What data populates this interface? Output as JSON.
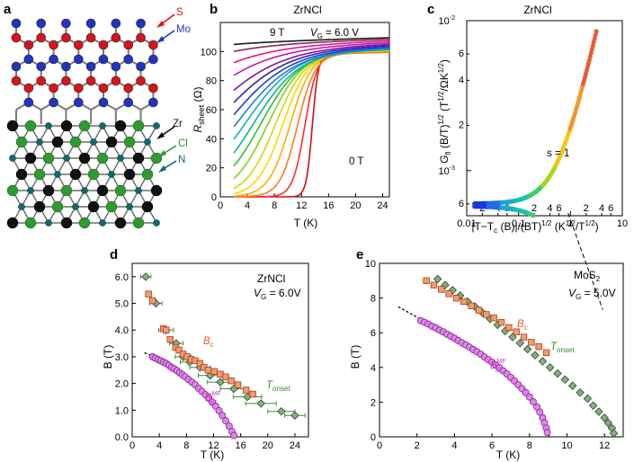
{
  "figure": {
    "panel_labels": [
      "a",
      "b",
      "c",
      "d",
      "e"
    ]
  },
  "panel_a": {
    "mos2_labels": [
      "S",
      "Mo"
    ],
    "zrncl_labels": [
      "Zr",
      "Cl",
      "N"
    ],
    "colors": {
      "S": "#d8141c",
      "Mo": "#2333c4",
      "Zr": "#111111",
      "Cl": "#2f9a2f",
      "N": "#0f6b6b"
    }
  },
  "chart_data": [
    {
      "id": "b",
      "type": "line",
      "title": "ZrNCl",
      "xlabel": "T (K)",
      "ylabel_main": "R",
      "ylabel_sub": "sheet",
      "ylabel_unit": " (Ω)",
      "xlim": [
        0,
        25
      ],
      "ylim": [
        0,
        120
      ],
      "xticks": [
        "0",
        "4",
        "8",
        "12",
        "16",
        "20",
        "24"
      ],
      "yticks": [
        "0",
        "20",
        "40",
        "60",
        "80",
        "100"
      ],
      "annotations": {
        "high_field": "9 T",
        "gate": "V",
        "gate_sub": "G",
        "gate_val": " = 6.0 V",
        "zero_field": "0 T"
      },
      "series": [
        {
          "name": "0 T",
          "tc": 13.6,
          "w": 0.45,
          "rn": 99,
          "color": "#d01010"
        },
        {
          "name": "c1",
          "tc": 12.5,
          "w": 0.9,
          "rn": 99,
          "color": "#ff2a2a"
        },
        {
          "name": "c2",
          "tc": 11.4,
          "w": 1.3,
          "rn": 99,
          "color": "#ff7a1a"
        },
        {
          "name": "c3",
          "tc": 10.3,
          "w": 1.6,
          "rn": 100,
          "color": "#ffaa00"
        },
        {
          "name": "c4",
          "tc": 9.2,
          "w": 1.9,
          "rn": 100,
          "color": "#ffd400"
        },
        {
          "name": "c5",
          "tc": 8.1,
          "w": 2.2,
          "rn": 100,
          "color": "#c8dc00"
        },
        {
          "name": "c6",
          "tc": 7.0,
          "w": 2.6,
          "rn": 101,
          "color": "#7ed21a"
        },
        {
          "name": "c7",
          "tc": 5.9,
          "w": 3.0,
          "rn": 101,
          "color": "#2cc23a"
        },
        {
          "name": "c8",
          "tc": 4.8,
          "w": 3.4,
          "rn": 101,
          "color": "#11b48a"
        },
        {
          "name": "c9",
          "tc": 3.6,
          "w": 3.8,
          "rn": 102,
          "color": "#16a8d0"
        },
        {
          "name": "c10",
          "tc": 2.3,
          "w": 4.2,
          "rn": 102,
          "color": "#1f7de0"
        },
        {
          "name": "c11",
          "tc": 0.9,
          "w": 4.6,
          "rn": 103,
          "color": "#2040c8"
        },
        {
          "name": "c12",
          "tc": -0.8,
          "w": 5.0,
          "rn": 104,
          "color": "#3a1faa"
        },
        {
          "name": "c13",
          "tc": -3.0,
          "w": 5.5,
          "rn": 105,
          "color": "#7a1aa8"
        },
        {
          "name": "c14",
          "tc": -6.5,
          "w": 6.0,
          "rn": 106,
          "color": "#c018a8"
        },
        {
          "name": "c15",
          "tc": -11.0,
          "w": 6.5,
          "rn": 107,
          "color": "#e0188a"
        },
        {
          "name": "c16",
          "tc": -18.0,
          "w": 7.0,
          "rn": 108,
          "color": "#8a2a50"
        },
        {
          "name": "9 T",
          "tc": -30.0,
          "w": 8.0,
          "rn": 109,
          "color": "#1a1a1a"
        }
      ]
    },
    {
      "id": "c",
      "type": "scatter",
      "title": "ZrNCl",
      "xscale": "log",
      "yscale": "log",
      "xlim": [
        0.01,
        10
      ],
      "ylim": [
        0.0005,
        0.01
      ],
      "xticks": [
        "0.01",
        "0.1",
        "1",
        "10"
      ],
      "yticks": [
        "10",
        "10",
        "10"
      ],
      "ytick_exps": [
        "-4",
        "-3",
        "-2"
      ],
      "minor_x_labels": [
        "2",
        "4",
        "6",
        "2",
        "4",
        "6",
        "2",
        "4",
        "6",
        "2",
        "4",
        "6"
      ],
      "minor_y_labels": [
        "6",
        "2",
        "4",
        "6",
        "2",
        "4",
        "6",
        "2",
        "4"
      ],
      "xlabel": "|T−T",
      "xlabel_sub": "c",
      "xlabel_rest": " (B)|/(BT)",
      "xlabel_sup": "1/2",
      "xlabel_unit": " (K",
      "xlabel_unit_sup": "1/2",
      "xlabel_unit_mid": "/T",
      "xlabel_unit_sup2": "1/2",
      "xlabel_unit_end": ")",
      "ylabel": "G",
      "ylabel_sub": "fl",
      "ylabel_rest": " (B/T)",
      "ylabel_sup": "1/2",
      "ylabel_unit": " (T",
      "ylabel_unit_sup": "1/2",
      "ylabel_unit_end": "/ΩK",
      "ylabel_unit_sup2": "1/2",
      "ylabel_unit_close": ")",
      "annotation": "s = 1",
      "upper_branch_level": 0.0006,
      "lower_branch_level": 0.00058
    },
    {
      "id": "d",
      "type": "scatter",
      "title": "ZrNCl",
      "gate": "V",
      "gate_sub": "G",
      "gate_val": " = 6.0V",
      "xlabel": "T (K)",
      "ylabel": "B (T)",
      "xlim": [
        0,
        26
      ],
      "ylim": [
        0,
        6.5
      ],
      "xticks": [
        "0",
        "4",
        "8",
        "12",
        "16",
        "20",
        "24"
      ],
      "yticks": [
        "0.0",
        "1.0",
        "2.0",
        "3.0",
        "4.0",
        "5.0",
        "6.0"
      ],
      "label_bc": "B",
      "label_bc_sub": "c",
      "label_tonset": "T",
      "label_tonset_sub": "onset",
      "label_bc2": "B",
      "label_bc2_sup": "MF",
      "label_bc2_sub": "c2",
      "bc_points": [
        [
          2.4,
          5.35
        ],
        [
          3.0,
          5.1
        ],
        [
          4.6,
          4.05
        ],
        [
          5.0,
          4.0
        ],
        [
          5.6,
          3.65
        ],
        [
          6.4,
          3.35
        ],
        [
          6.9,
          3.25
        ],
        [
          7.5,
          3.1
        ],
        [
          8.1,
          3.0
        ],
        [
          8.7,
          2.9
        ],
        [
          9.3,
          2.85
        ],
        [
          10.0,
          2.75
        ],
        [
          10.6,
          2.6
        ],
        [
          11.2,
          2.5
        ],
        [
          12.1,
          2.45
        ],
        [
          13.0,
          2.35
        ],
        [
          13.8,
          2.25
        ],
        [
          14.6,
          2.1
        ],
        [
          15.6,
          1.95
        ],
        [
          16.8,
          1.75
        ],
        [
          17.8,
          1.6
        ]
      ],
      "tonset_points": [
        [
          2.0,
          6.0
        ],
        [
          3.5,
          5.0
        ],
        [
          5.0,
          4.0
        ],
        [
          6.5,
          3.5
        ],
        [
          7.5,
          3.0
        ],
        [
          8.5,
          2.8
        ],
        [
          10.0,
          2.6
        ],
        [
          11.5,
          2.3
        ],
        [
          13.0,
          2.05
        ],
        [
          15.0,
          1.8
        ],
        [
          17.0,
          1.5
        ],
        [
          19.0,
          1.25
        ],
        [
          22.0,
          0.95
        ],
        [
          24.0,
          0.8
        ]
      ],
      "tonset_err": [
        1.5,
        1.8,
        2.2,
        2.0,
        2.3,
        2.8,
        3.0,
        3.5,
        3.8,
        4.0,
        4.2,
        4.5,
        4.0,
        3.0
      ],
      "bc2_points": [
        [
          3.0,
          3.0
        ],
        [
          3.4,
          2.95
        ],
        [
          3.8,
          2.9
        ],
        [
          4.2,
          2.85
        ],
        [
          4.6,
          2.8
        ],
        [
          5.0,
          2.75
        ],
        [
          5.4,
          2.68
        ],
        [
          5.8,
          2.6
        ],
        [
          6.2,
          2.55
        ],
        [
          6.6,
          2.48
        ],
        [
          7.0,
          2.4
        ],
        [
          7.4,
          2.33
        ],
        [
          7.8,
          2.25
        ],
        [
          8.3,
          2.15
        ],
        [
          8.8,
          2.05
        ],
        [
          9.3,
          1.95
        ],
        [
          9.8,
          1.82
        ],
        [
          10.3,
          1.7
        ],
        [
          10.8,
          1.58
        ],
        [
          11.3,
          1.45
        ],
        [
          11.8,
          1.3
        ],
        [
          12.3,
          1.15
        ],
        [
          12.8,
          0.98
        ],
        [
          13.3,
          0.8
        ],
        [
          13.8,
          0.6
        ],
        [
          14.3,
          0.4
        ],
        [
          14.7,
          0.2
        ],
        [
          15.0,
          0.05
        ]
      ],
      "fit_line": [
        [
          1.8,
          3.15
        ],
        [
          4.0,
          2.95
        ],
        [
          6.0,
          2.62
        ],
        [
          8.0,
          2.25
        ],
        [
          10.0,
          1.8
        ],
        [
          12.0,
          1.25
        ],
        [
          13.5,
          0.75
        ],
        [
          15.3,
          0.0
        ]
      ]
    },
    {
      "id": "e",
      "type": "scatter",
      "title": "MoS",
      "title_sub": "2",
      "gate": "V",
      "gate_sub": "G",
      "gate_val": " = 5.0V",
      "xlabel": "T (K)",
      "ylabel": "B (T)",
      "xlim": [
        0,
        13
      ],
      "ylim": [
        0,
        10
      ],
      "xticks": [
        "0",
        "2",
        "4",
        "6",
        "8",
        "10",
        "12"
      ],
      "yticks": [
        "0",
        "2",
        "4",
        "6",
        "8",
        "10"
      ],
      "label_bc": "B",
      "label_bc_sub": "c",
      "label_tonset": "T",
      "label_tonset_sub": "onset",
      "label_bc2": "B",
      "label_bc2_sup": "MF",
      "label_bc2_sub": "c2",
      "bc_points": [
        [
          2.5,
          9.0
        ],
        [
          2.9,
          8.75
        ],
        [
          3.3,
          8.5
        ],
        [
          3.7,
          8.25
        ],
        [
          4.1,
          8.0
        ],
        [
          4.5,
          7.8
        ],
        [
          4.9,
          7.55
        ],
        [
          5.3,
          7.3
        ],
        [
          5.7,
          7.05
        ],
        [
          6.1,
          6.85
        ],
        [
          6.5,
          6.6
        ],
        [
          6.9,
          6.3
        ],
        [
          7.3,
          6.05
        ],
        [
          7.7,
          5.75
        ],
        [
          8.1,
          5.45
        ],
        [
          8.5,
          5.2
        ],
        [
          8.9,
          4.85
        ]
      ],
      "tonset_points": [
        [
          3.1,
          9.1
        ],
        [
          3.5,
          8.75
        ],
        [
          3.9,
          8.45
        ],
        [
          4.3,
          8.15
        ],
        [
          4.7,
          7.8
        ],
        [
          5.1,
          7.5
        ],
        [
          5.5,
          7.15
        ],
        [
          5.9,
          6.8
        ],
        [
          6.3,
          6.45
        ],
        [
          6.7,
          6.1
        ],
        [
          7.1,
          5.75
        ],
        [
          7.5,
          5.4
        ],
        [
          7.9,
          5.05
        ],
        [
          8.3,
          4.7
        ],
        [
          8.7,
          4.35
        ],
        [
          9.1,
          4.0
        ],
        [
          9.5,
          3.65
        ],
        [
          9.9,
          3.3
        ],
        [
          10.3,
          2.95
        ],
        [
          10.7,
          2.55
        ],
        [
          11.1,
          2.2
        ],
        [
          11.4,
          1.8
        ],
        [
          11.7,
          1.45
        ],
        [
          12.0,
          1.1
        ],
        [
          12.2,
          0.8
        ],
        [
          12.4,
          0.5
        ],
        [
          12.5,
          0.2
        ]
      ],
      "bc2_points": [
        [
          2.2,
          6.7
        ],
        [
          2.4,
          6.6
        ],
        [
          2.6,
          6.5
        ],
        [
          2.8,
          6.38
        ],
        [
          3.0,
          6.28
        ],
        [
          3.2,
          6.15
        ],
        [
          3.4,
          6.05
        ],
        [
          3.6,
          5.92
        ],
        [
          3.8,
          5.8
        ],
        [
          4.0,
          5.68
        ],
        [
          4.2,
          5.55
        ],
        [
          4.4,
          5.42
        ],
        [
          4.6,
          5.3
        ],
        [
          4.8,
          5.17
        ],
        [
          5.0,
          5.03
        ],
        [
          5.2,
          4.9
        ],
        [
          5.4,
          4.76
        ],
        [
          5.6,
          4.6
        ],
        [
          5.8,
          4.45
        ],
        [
          6.0,
          4.3
        ],
        [
          6.2,
          4.14
        ],
        [
          6.4,
          3.98
        ],
        [
          6.6,
          3.8
        ],
        [
          6.8,
          3.62
        ],
        [
          7.0,
          3.42
        ],
        [
          7.2,
          3.22
        ],
        [
          7.4,
          3.0
        ],
        [
          7.6,
          2.78
        ],
        [
          7.8,
          2.55
        ],
        [
          8.0,
          2.3
        ],
        [
          8.2,
          2.02
        ],
        [
          8.4,
          1.72
        ],
        [
          8.55,
          1.42
        ],
        [
          8.7,
          1.1
        ],
        [
          8.8,
          0.8
        ],
        [
          8.9,
          0.5
        ],
        [
          8.95,
          0.25
        ]
      ],
      "fit_line": [
        [
          1.0,
          7.5
        ],
        [
          2.0,
          6.9
        ],
        [
          3.0,
          6.3
        ],
        [
          4.0,
          5.68
        ],
        [
          5.0,
          5.03
        ],
        [
          6.0,
          4.3
        ],
        [
          7.0,
          3.42
        ],
        [
          8.0,
          2.3
        ],
        [
          8.6,
          1.4
        ],
        [
          9.05,
          0.0
        ]
      ]
    }
  ]
}
